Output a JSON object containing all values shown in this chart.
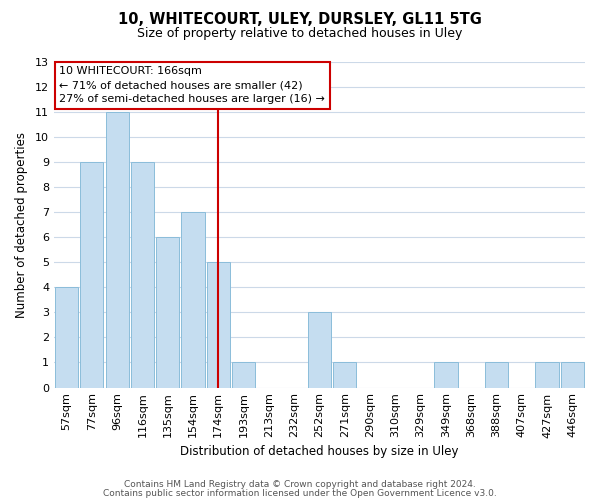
{
  "title_line1": "10, WHITECOURT, ULEY, DURSLEY, GL11 5TG",
  "title_line2": "Size of property relative to detached houses in Uley",
  "xlabel": "Distribution of detached houses by size in Uley",
  "ylabel": "Number of detached properties",
  "bar_labels": [
    "57sqm",
    "77sqm",
    "96sqm",
    "116sqm",
    "135sqm",
    "154sqm",
    "174sqm",
    "193sqm",
    "213sqm",
    "232sqm",
    "252sqm",
    "271sqm",
    "290sqm",
    "310sqm",
    "329sqm",
    "349sqm",
    "368sqm",
    "388sqm",
    "407sqm",
    "427sqm",
    "446sqm"
  ],
  "bar_values": [
    4,
    9,
    11,
    9,
    6,
    7,
    5,
    1,
    0,
    0,
    3,
    1,
    0,
    0,
    0,
    1,
    0,
    1,
    0,
    1,
    1
  ],
  "bar_color": "#c5ddf0",
  "bar_edge_color": "#8bbdda",
  "vline_x": 6,
  "vline_color": "#cc0000",
  "annotation_title": "10 WHITECOURT: 166sqm",
  "annotation_line1": "← 71% of detached houses are smaller (42)",
  "annotation_line2": "27% of semi-detached houses are larger (16) →",
  "annotation_box_facecolor": "#ffffff",
  "annotation_box_edgecolor": "#cc0000",
  "ylim": [
    0,
    13
  ],
  "yticks": [
    0,
    1,
    2,
    3,
    4,
    5,
    6,
    7,
    8,
    9,
    10,
    11,
    12,
    13
  ],
  "footer_line1": "Contains HM Land Registry data © Crown copyright and database right 2024.",
  "footer_line2": "Contains public sector information licensed under the Open Government Licence v3.0.",
  "background_color": "#ffffff",
  "grid_color": "#ccd9e8",
  "title1_fontsize": 10.5,
  "title2_fontsize": 9,
  "xlabel_fontsize": 8.5,
  "ylabel_fontsize": 8.5,
  "tick_fontsize": 8,
  "ann_fontsize": 8,
  "footer_fontsize": 6.5
}
